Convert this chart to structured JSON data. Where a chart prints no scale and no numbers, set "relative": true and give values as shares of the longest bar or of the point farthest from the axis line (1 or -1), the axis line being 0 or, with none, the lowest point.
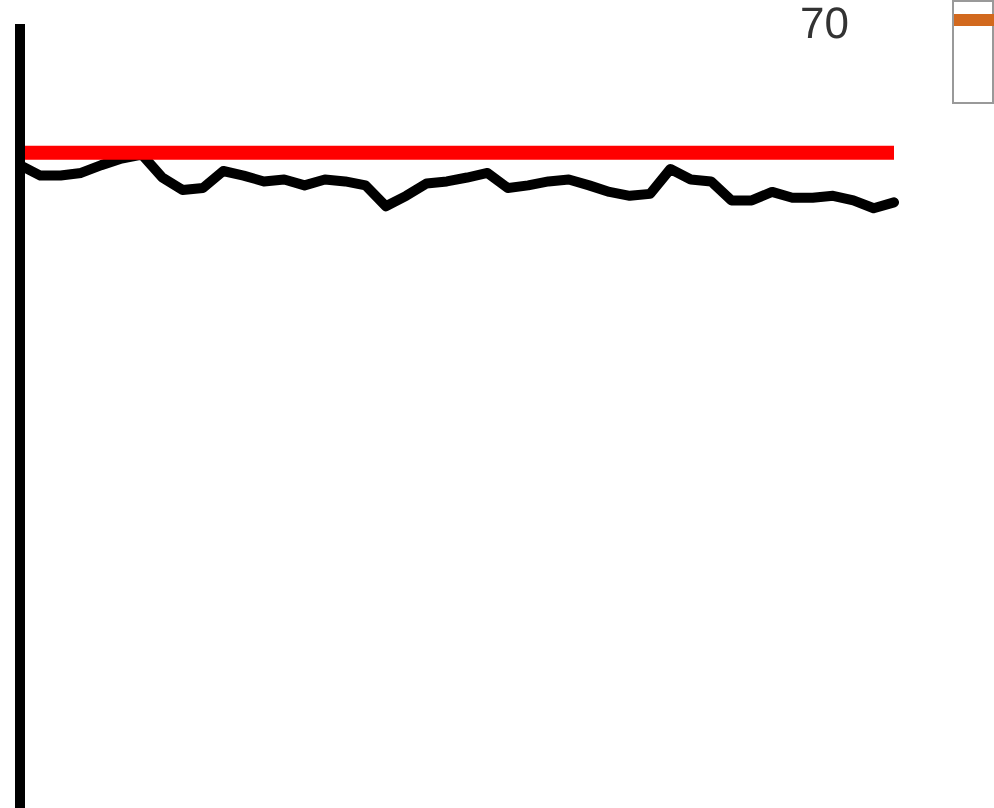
{
  "chart_data": {
    "type": "line",
    "relative": true,
    "categories": [
      null,
      null,
      null,
      null,
      null,
      null,
      null,
      null,
      null,
      null,
      null,
      null,
      null,
      null,
      null,
      null,
      null,
      null,
      null,
      null,
      null,
      null,
      null,
      null,
      null,
      null,
      null,
      null,
      null,
      null,
      null,
      null,
      null,
      null,
      null,
      null,
      null,
      null,
      null,
      null,
      null,
      null,
      null,
      null
    ],
    "series": [
      {
        "color": "#000000",
        "values": [
          0.984,
          0.968,
          0.968,
          0.972,
          0.984,
          0.994,
          1,
          0.965,
          0.946,
          0.949,
          0.975,
          0.968,
          0.959,
          0.962,
          0.953,
          0.962,
          0.959,
          0.953,
          0.921,
          0.937,
          0.956,
          0.959,
          0.965,
          0.972,
          0.949,
          0.953,
          0.959,
          0.962,
          0.953,
          0.943,
          0.937,
          0.94,
          0.978,
          0.962,
          0.959,
          0.93,
          0.93,
          0.943,
          0.934,
          0.934,
          0.937,
          0.93,
          0.918,
          0.927
        ]
      }
    ],
    "ref_lines": [
      {
        "axis": "y",
        "value": 1.003,
        "color": "#ff0000"
      }
    ],
    "annotations": [
      "70"
    ],
    "marker": "none",
    "line_style": "solid"
  }
}
